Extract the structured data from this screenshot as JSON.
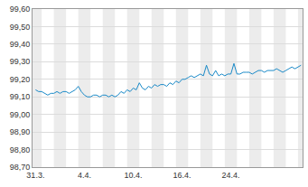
{
  "chart_data": {
    "type": "line",
    "categories": [
      "31.3.",
      null,
      null,
      null,
      null,
      null,
      null,
      null,
      null,
      null,
      null,
      null,
      null,
      null,
      null,
      null,
      "4.4.",
      null,
      null,
      null,
      null,
      null,
      null,
      null,
      null,
      null,
      null,
      null,
      null,
      null,
      null,
      null,
      "10.4.",
      null,
      null,
      null,
      null,
      null,
      null,
      null,
      null,
      null,
      null,
      null,
      null,
      null,
      null,
      null,
      "16.4.",
      null,
      null,
      null,
      null,
      null,
      null,
      null,
      null,
      null,
      null,
      null,
      null,
      null,
      null,
      null,
      "24.4.",
      null,
      null,
      null,
      null,
      null,
      null,
      null,
      null,
      null,
      null,
      null,
      null,
      null,
      null,
      null,
      null,
      null,
      null,
      null,
      null,
      null,
      null,
      null
    ],
    "values": [
      99.14,
      99.13,
      99.13,
      99.12,
      99.11,
      99.12,
      99.12,
      99.13,
      99.12,
      99.13,
      99.13,
      99.12,
      99.13,
      99.14,
      99.16,
      99.13,
      99.11,
      99.1,
      99.1,
      99.11,
      99.11,
      99.1,
      99.11,
      99.11,
      99.1,
      99.11,
      99.1,
      99.11,
      99.13,
      99.12,
      99.14,
      99.13,
      99.15,
      99.14,
      99.18,
      99.15,
      99.14,
      99.16,
      99.15,
      99.17,
      99.16,
      99.17,
      99.17,
      99.16,
      99.18,
      99.17,
      99.19,
      99.18,
      99.2,
      99.2,
      99.21,
      99.22,
      99.21,
      99.22,
      99.23,
      99.22,
      99.28,
      99.23,
      99.22,
      99.25,
      99.22,
      99.23,
      99.22,
      99.23,
      99.23,
      99.29,
      99.23,
      99.23,
      99.24,
      99.24,
      99.24,
      99.23,
      99.24,
      99.25,
      99.25,
      99.24,
      99.25,
      99.25,
      99.25,
      99.26,
      99.25,
      99.24,
      99.25,
      99.26,
      99.27,
      99.26,
      99.27,
      99.28
    ],
    "color": "#1a8ac8",
    "ylim": [
      98.7,
      99.6
    ],
    "yticks": [
      {
        "value": 98.7,
        "label": "98,70"
      },
      {
        "value": 98.8,
        "label": "98,80"
      },
      {
        "value": 98.9,
        "label": "98,90"
      },
      {
        "value": 99.0,
        "label": "99,00"
      },
      {
        "value": 99.1,
        "label": "99,10"
      },
      {
        "value": 99.2,
        "label": "99,20"
      },
      {
        "value": 99.3,
        "label": "99,30"
      },
      {
        "value": 99.4,
        "label": "99,40"
      },
      {
        "value": 99.5,
        "label": "99,50"
      },
      {
        "value": 99.6,
        "label": "99,60"
      }
    ],
    "grid": true
  }
}
